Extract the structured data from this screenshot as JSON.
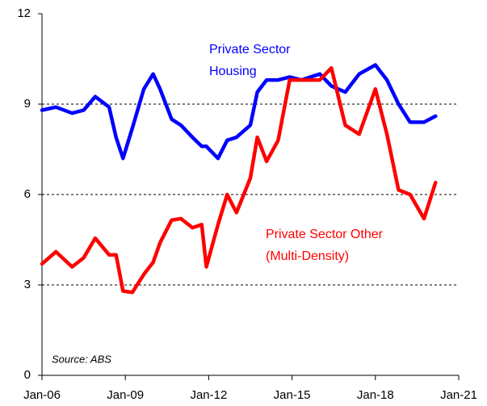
{
  "chart_data": {
    "type": "line",
    "x": [
      "2006-01",
      "2006-07",
      "2007-02",
      "2007-07",
      "2007-12",
      "2008-06",
      "2008-09",
      "2008-12",
      "2009-04",
      "2009-09",
      "2010-01",
      "2010-04",
      "2010-09",
      "2011-01",
      "2011-06",
      "2011-10",
      "2011-12",
      "2012-05",
      "2012-09",
      "2013-01",
      "2013-07",
      "2013-10",
      "2014-02",
      "2014-07",
      "2014-12",
      "2015-05",
      "2016-01",
      "2016-06",
      "2016-12",
      "2017-06",
      "2018-01",
      "2018-06",
      "2018-11",
      "2019-04",
      "2019-10",
      "2020-03"
    ],
    "series": [
      {
        "name": "Private Sector Housing",
        "color": "#0000ff",
        "values": [
          8.8,
          8.9,
          8.7,
          8.8,
          9.25,
          8.9,
          7.9,
          7.2,
          8.2,
          9.5,
          10.0,
          9.5,
          8.5,
          8.3,
          7.9,
          7.6,
          7.6,
          7.2,
          7.8,
          7.9,
          8.3,
          9.4,
          9.8,
          9.8,
          9.9,
          9.8,
          10.0,
          9.6,
          9.4,
          10.0,
          10.3,
          9.8,
          9.0,
          8.4,
          8.4,
          8.6
        ]
      },
      {
        "name": "Private Sector Other (Multi-Density)",
        "color": "#ff0000",
        "values": [
          3.7,
          4.1,
          3.6,
          3.9,
          4.55,
          4.0,
          4.0,
          2.8,
          2.75,
          3.35,
          3.75,
          4.4,
          5.15,
          5.2,
          4.9,
          5.0,
          3.6,
          5.0,
          6.0,
          5.4,
          6.55,
          7.9,
          7.1,
          7.8,
          9.8,
          9.8,
          9.8,
          10.2,
          8.3,
          8.0,
          9.5,
          8.0,
          6.15,
          6.0,
          5.2,
          6.4
        ]
      }
    ],
    "annotations": {
      "housing": [
        "Private Sector",
        "Housing"
      ],
      "other": [
        "Private Sector Other",
        "(Multi-Density)"
      ],
      "source": "Source: ABS"
    },
    "xlim": [
      "2006-01",
      "2021-01"
    ],
    "xticks": [
      {
        "value": "2006-01",
        "label": "Jan-06"
      },
      {
        "value": "2009-01",
        "label": "Jan-09"
      },
      {
        "value": "2012-01",
        "label": "Jan-12"
      },
      {
        "value": "2015-01",
        "label": "Jan-15"
      },
      {
        "value": "2018-01",
        "label": "Jan-18"
      },
      {
        "value": "2021-01",
        "label": "Jan-21"
      }
    ],
    "ylim": [
      0,
      12
    ],
    "yticks": [
      0,
      3,
      6,
      9,
      12
    ],
    "grid": true
  }
}
